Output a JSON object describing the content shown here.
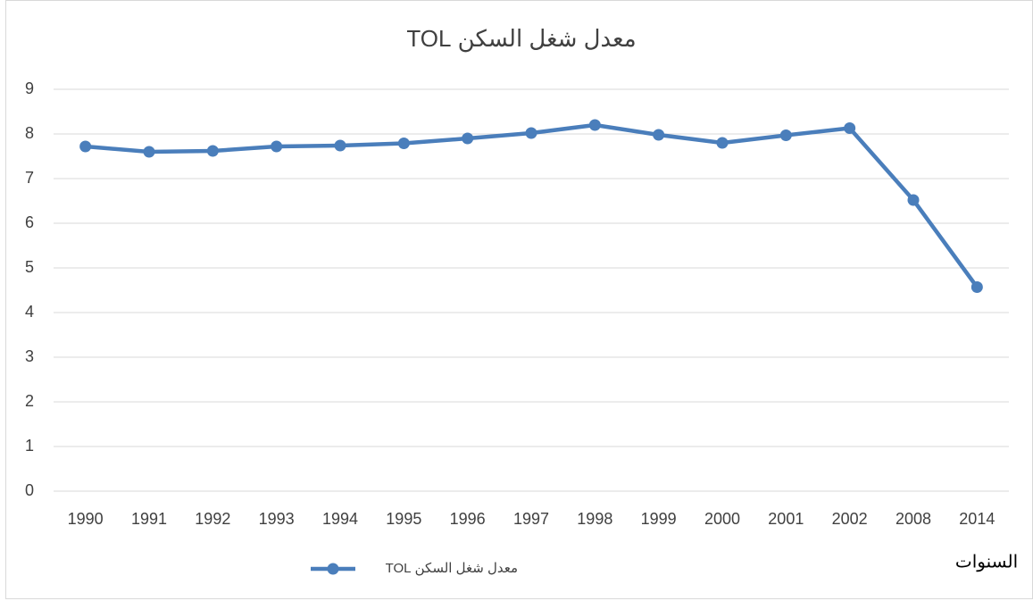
{
  "chart_data": {
    "type": "line",
    "title": "معدل شغل السكن TOL",
    "x_label": "السنوات",
    "categories": [
      "1990",
      "1991",
      "1992",
      "1993",
      "1994",
      "1995",
      "1996",
      "1997",
      "1998",
      "1999",
      "2000",
      "2001",
      "2002",
      "2008",
      "2014"
    ],
    "series": [
      {
        "name": "معدل شغل السكن TOL",
        "color": "#4a7ebb",
        "values": [
          7.72,
          7.6,
          7.62,
          7.72,
          7.74,
          7.79,
          7.9,
          8.02,
          8.2,
          7.98,
          7.8,
          7.97,
          8.13,
          6.52,
          4.57
        ]
      }
    ],
    "ylim": [
      0,
      9
    ],
    "yticks": [
      0,
      1,
      2,
      3,
      4,
      5,
      6,
      7,
      8,
      9
    ],
    "grid": true,
    "legend": "bottom"
  }
}
